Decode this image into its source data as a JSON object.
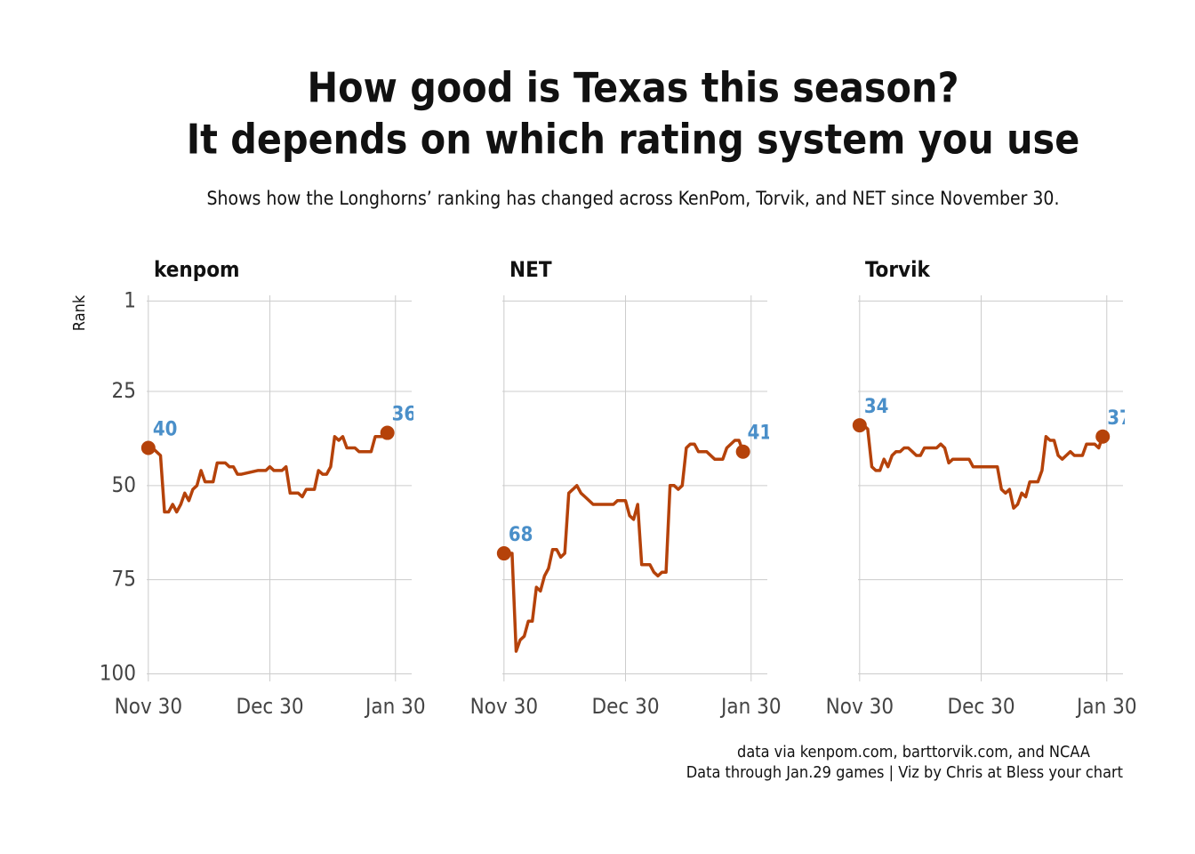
{
  "chart_data": {
    "type": "line",
    "title": [
      "How good is Texas this season?",
      "It depends on which rating system you use"
    ],
    "subtitle": "Shows how the Longhorns’ ranking has changed across KenPom, Torvik, and NET since November 30.",
    "ylabel": "Rank",
    "caption": [
      "data via kenpom.com, barttorvik.com, and NCAA",
      "Data through Jan.29 games | Viz by Chris at Bless your chart"
    ],
    "y_reversed": true,
    "ylim": [
      -0.5,
      102
    ],
    "yticks": [
      1,
      25,
      50,
      75,
      100
    ],
    "xlim": [
      "Nov 30",
      "Feb 3"
    ],
    "xticks": [
      "Nov 30",
      "Dec 30",
      "Jan 30"
    ],
    "grid": true,
    "label_color": "#4a8fc9",
    "series": [
      {
        "name": "kenpom",
        "color": "#b5420a",
        "x": [
          "Nov 30",
          "Dec 1",
          "Dec 3",
          "Dec 4",
          "Dec 5",
          "Dec 6",
          "Dec 7",
          "Dec 8",
          "Dec 9",
          "Dec 10",
          "Dec 11",
          "Dec 12",
          "Dec 13",
          "Dec 14",
          "Dec 16",
          "Dec 17",
          "Dec 19",
          "Dec 20",
          "Dec 21",
          "Dec 22",
          "Dec 23",
          "Dec 27",
          "Dec 29",
          "Dec 30",
          "Dec 31",
          "Jan 2",
          "Jan 3",
          "Jan 4",
          "Jan 6",
          "Jan 7",
          "Jan 8",
          "Jan 10",
          "Jan 11",
          "Jan 12",
          "Jan 13",
          "Jan 14",
          "Jan 15",
          "Jan 16",
          "Jan 17",
          "Jan 18",
          "Jan 20",
          "Jan 21",
          "Jan 24",
          "Jan 25",
          "Jan 27",
          "Jan 28"
        ],
        "values": [
          40,
          40,
          42,
          57,
          57,
          55,
          57,
          55,
          52,
          54,
          51,
          50,
          46,
          49,
          49,
          44,
          44,
          45,
          45,
          47,
          47,
          46,
          46,
          45,
          46,
          46,
          45,
          52,
          52,
          53,
          51,
          51,
          46,
          47,
          47,
          45,
          37,
          38,
          37,
          40,
          40,
          41,
          41,
          37,
          37,
          36
        ]
      },
      {
        "name": "NET",
        "color": "#b5420a",
        "x": [
          "Nov 30",
          "Dec 1",
          "Dec 2",
          "Dec 3",
          "Dec 4",
          "Dec 5",
          "Dec 6",
          "Dec 7",
          "Dec 8",
          "Dec 9",
          "Dec 10",
          "Dec 11",
          "Dec 12",
          "Dec 13",
          "Dec 14",
          "Dec 15",
          "Dec 16",
          "Dec 17",
          "Dec 18",
          "Dec 19",
          "Dec 20",
          "Dec 22",
          "Dec 27",
          "Dec 28",
          "Dec 30",
          "Dec 31",
          "Jan 1",
          "Jan 2",
          "Jan 3",
          "Jan 5",
          "Jan 6",
          "Jan 7",
          "Jan 8",
          "Jan 9",
          "Jan 10",
          "Jan 11",
          "Jan 12",
          "Jan 13",
          "Jan 14",
          "Jan 15",
          "Jan 16",
          "Jan 17",
          "Jan 19",
          "Jan 21",
          "Jan 23",
          "Jan 24",
          "Jan 26",
          "Jan 27",
          "Jan 28"
        ],
        "values": [
          68,
          68,
          68,
          94,
          91,
          90,
          86,
          86,
          77,
          78,
          74,
          72,
          67,
          67,
          69,
          68,
          52,
          51,
          50,
          52,
          53,
          55,
          55,
          54,
          54,
          58,
          59,
          55,
          71,
          71,
          73,
          74,
          73,
          73,
          50,
          50,
          51,
          50,
          40,
          39,
          39,
          41,
          41,
          43,
          43,
          40,
          38,
          38,
          41
        ]
      },
      {
        "name": "Torvik",
        "color": "#b5420a",
        "x": [
          "Nov 30",
          "Dec 1",
          "Dec 2",
          "Dec 3",
          "Dec 4",
          "Dec 5",
          "Dec 6",
          "Dec 7",
          "Dec 8",
          "Dec 9",
          "Dec 10",
          "Dec 11",
          "Dec 12",
          "Dec 13",
          "Dec 14",
          "Dec 15",
          "Dec 16",
          "Dec 18",
          "Dec 19",
          "Dec 20",
          "Dec 21",
          "Dec 22",
          "Dec 23",
          "Dec 27",
          "Dec 28",
          "Jan 3",
          "Jan 4",
          "Jan 5",
          "Jan 6",
          "Jan 7",
          "Jan 8",
          "Jan 9",
          "Jan 10",
          "Jan 11",
          "Jan 13",
          "Jan 14",
          "Jan 15",
          "Jan 16",
          "Jan 17",
          "Jan 18",
          "Jan 19",
          "Jan 20",
          "Jan 21",
          "Jan 22",
          "Jan 24",
          "Jan 25",
          "Jan 27",
          "Jan 28",
          "Jan 29"
        ],
        "values": [
          34,
          34,
          35,
          45,
          46,
          46,
          43,
          45,
          42,
          41,
          41,
          40,
          40,
          41,
          42,
          42,
          40,
          40,
          40,
          39,
          40,
          44,
          43,
          43,
          45,
          45,
          51,
          52,
          51,
          56,
          55,
          52,
          53,
          49,
          49,
          46,
          37,
          38,
          38,
          42,
          43,
          42,
          41,
          42,
          42,
          39,
          39,
          40,
          37
        ]
      }
    ]
  }
}
